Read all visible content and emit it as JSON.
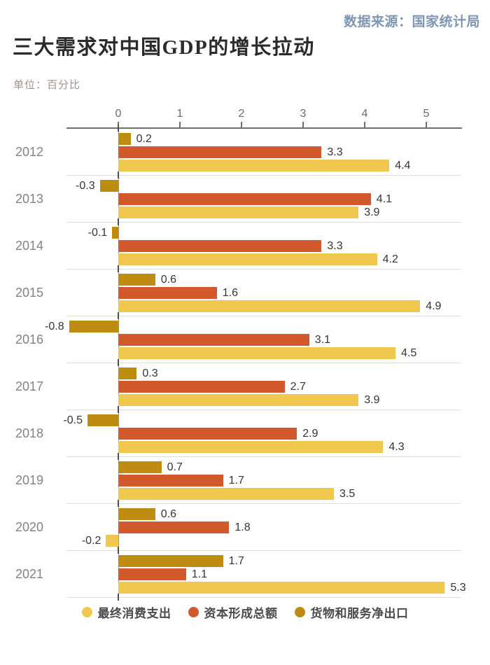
{
  "header": {
    "source": "数据来源：国家统计局",
    "title": "三大需求对中国GDP的增长拉动",
    "unit_label": "单位：百分比"
  },
  "colors": {
    "consumption": "#F0C84E",
    "capital": "#D2592B",
    "net_exports": "#BE8C10",
    "source_text": "#7E96B4",
    "title_text": "#2B2B2B",
    "unit_text": "#9C948C",
    "axis_line": "#6E6E6E",
    "grid_line": "#DEDEDE",
    "zero_line": "#9B9B9B",
    "category_tick": "#4F4F4F",
    "year_label": "#838383",
    "value_label": "#343434",
    "axis_label": "#6B6B6B",
    "legend_text": "#4A4A4A"
  },
  "chart_data": {
    "type": "bar",
    "orientation": "horizontal",
    "title": "三大需求对中国GDP的增长拉动",
    "unit": "百分比",
    "categories": [
      "2012",
      "2013",
      "2014",
      "2015",
      "2016",
      "2017",
      "2018",
      "2019",
      "2020",
      "2021"
    ],
    "series": [
      {
        "name": "最终消费支出",
        "key": "consumption",
        "values": [
          4.4,
          3.9,
          4.2,
          4.9,
          4.5,
          3.9,
          4.3,
          3.5,
          -0.2,
          5.3
        ]
      },
      {
        "name": "资本形成总额",
        "key": "capital",
        "values": [
          3.3,
          4.1,
          3.3,
          1.6,
          3.1,
          2.7,
          2.9,
          1.7,
          1.8,
          1.1
        ]
      },
      {
        "name": "货物和服务净出口",
        "key": "net_exports",
        "values": [
          0.2,
          -0.3,
          -0.1,
          0.6,
          -0.8,
          0.3,
          -0.5,
          0.7,
          0.6,
          1.7
        ]
      }
    ],
    "x_ticks": [
      0,
      1,
      2,
      3,
      4,
      5
    ],
    "xlim": [
      -0.85,
      5.56
    ],
    "value_labels": true,
    "value_label_decimals": 1,
    "grid": "category-separators",
    "legend_position": "bottom",
    "row_order_top_to_bottom": [
      "net_exports",
      "capital",
      "consumption"
    ]
  }
}
